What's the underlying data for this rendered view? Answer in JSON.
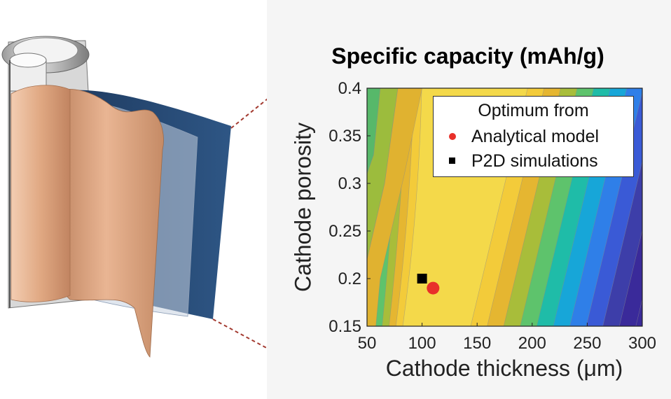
{
  "chart_data": {
    "type": "contour",
    "title": "Specific capacity (mAh/g)",
    "xlabel": "Cathode thickness (μm)",
    "ylabel": "Cathode porosity",
    "xlim": [
      50,
      300
    ],
    "ylim": [
      0.15,
      0.4
    ],
    "xticks": [
      "50",
      "100",
      "150",
      "200",
      "250",
      "300"
    ],
    "yticks": [
      "0.15",
      "0.2",
      "0.25",
      "0.3",
      "0.35",
      "0.4"
    ],
    "legend": {
      "title": "Optimum from",
      "placement": "top-right",
      "entries": [
        {
          "name": "Analytical model",
          "marker": "circle",
          "color": "#e8302a"
        },
        {
          "name": "P2D simulations",
          "marker": "square",
          "color": "#000000"
        }
      ]
    },
    "optima": [
      {
        "series": "Analytical model",
        "x": 110,
        "y": 0.19
      },
      {
        "series": "P2D simulations",
        "x": 100,
        "y": 0.2
      }
    ],
    "colormap": [
      "#3a2a9a",
      "#3d3ea9",
      "#3a5ad6",
      "#2f7fe8",
      "#17a6d8",
      "#1fbca8",
      "#5ec36c",
      "#a8bd3a",
      "#e5b631",
      "#f3cb3a",
      "#f4d94a"
    ],
    "background_color": "#3a2a9a",
    "grid": false
  },
  "illustration": {
    "subject": "cylindrical battery cell with unrolled electrode layers",
    "colors": {
      "copper": "#d9a17c",
      "separator": "#b9c8dc",
      "cathode": "#25476f",
      "leader": "#a33a30"
    }
  }
}
